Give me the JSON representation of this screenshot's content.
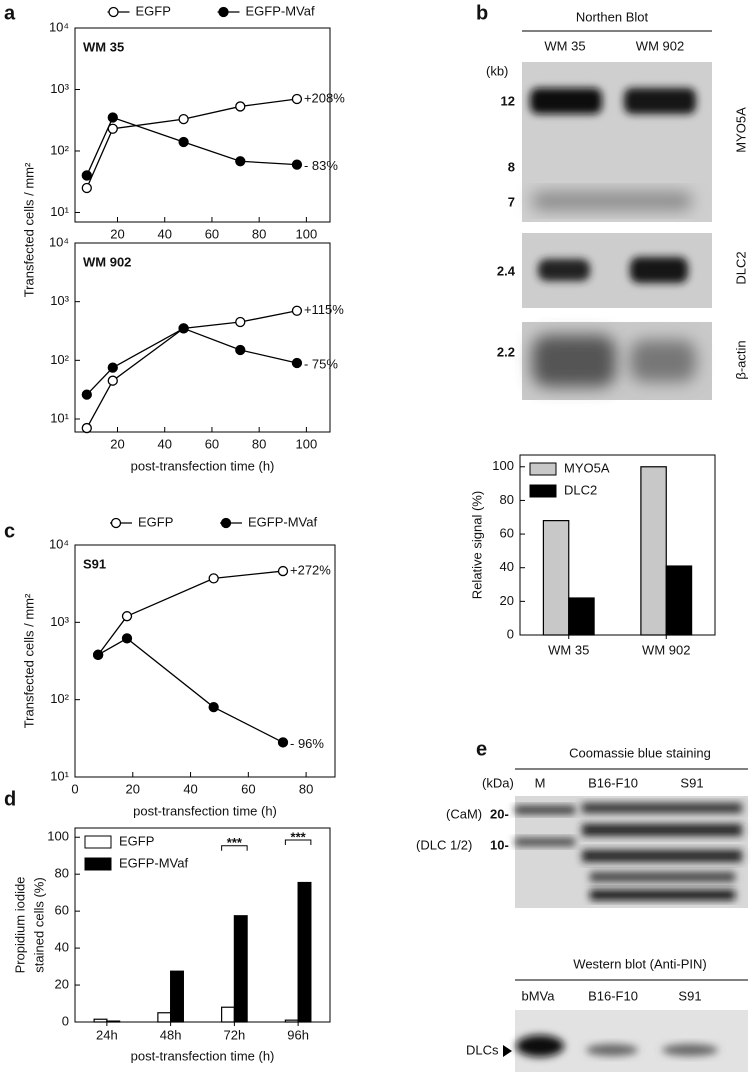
{
  "panel_labels": [
    "a",
    "b",
    "c",
    "d",
    "e"
  ],
  "chart_data": [
    {
      "type": "line",
      "log_scale": true,
      "label": "WM 35",
      "ylabel": "Transfected cells / mm²",
      "legend": "top",
      "x": [
        7,
        18,
        48,
        72,
        96
      ],
      "xlim": [
        2,
        110
      ],
      "xticks": [
        20,
        40,
        60,
        80,
        100
      ],
      "ylim": [
        7,
        10000
      ],
      "yticks": [
        {
          "value": 10,
          "label": "10¹"
        },
        {
          "value": 100,
          "label": "10²"
        },
        {
          "value": 1000,
          "label": "10³"
        },
        {
          "value": 10000,
          "label": "10⁴"
        }
      ],
      "series": [
        {
          "name": "EGFP",
          "color": "#000000",
          "marker_fill": "#ffffff",
          "values": [
            25,
            230,
            330,
            530,
            700
          ],
          "end_label": "+208%"
        },
        {
          "name": "EGFP-MVaf",
          "color": "#000000",
          "marker_fill": "#000000",
          "values": [
            40,
            350,
            140,
            68,
            60
          ],
          "end_label": "- 83%"
        }
      ]
    },
    {
      "type": "line",
      "log_scale": true,
      "label": "WM 902",
      "xlabel": "post-transfection time (h)",
      "x": [
        7,
        18,
        48,
        72,
        96
      ],
      "xlim": [
        2,
        110
      ],
      "xticks": [
        20,
        40,
        60,
        80,
        100
      ],
      "ylim": [
        6,
        10000
      ],
      "yticks": [
        {
          "value": 10,
          "label": "10¹"
        },
        {
          "value": 100,
          "label": "10²"
        },
        {
          "value": 1000,
          "label": "10³"
        },
        {
          "value": 10000,
          "label": "10⁴"
        }
      ],
      "series": [
        {
          "color": "#000000",
          "marker_fill": "#ffffff",
          "values": [
            7,
            45,
            350,
            450,
            700
          ],
          "end_label": "+115%"
        },
        {
          "color": "#000000",
          "marker_fill": "#000000",
          "values": [
            26,
            75,
            350,
            150,
            90
          ],
          "end_label": "- 75%"
        }
      ]
    },
    {
      "type": "line",
      "log_scale": true,
      "label": "S91",
      "ylabel": "Transfected cells / mm²",
      "xlabel": "post-transfection time (h)",
      "legend": "top",
      "x": [
        8,
        18,
        48,
        72
      ],
      "xlim": [
        0,
        90
      ],
      "xticks": [
        0,
        20,
        40,
        60,
        80
      ],
      "ylim": [
        10,
        10000
      ],
      "yticks": [
        {
          "value": 10,
          "label": "10¹"
        },
        {
          "value": 100,
          "label": "10²"
        },
        {
          "value": 1000,
          "label": "10³"
        },
        {
          "value": 10000,
          "label": "10⁴"
        }
      ],
      "series": [
        {
          "name": "EGFP",
          "color": "#000000",
          "marker_fill": "#ffffff",
          "values": [
            380,
            1200,
            3700,
            4600
          ],
          "end_label": "+272%"
        },
        {
          "name": "EGFP-MVaf",
          "color": "#000000",
          "marker_fill": "#000000",
          "values": [
            380,
            620,
            80,
            28
          ],
          "end_label": "- 96%"
        }
      ]
    },
    {
      "type": "bar",
      "ylabel": [
        "Propidium iodide",
        "stained cells (%)"
      ],
      "xlabel": "post-transfection time (h)",
      "legend": "top-left",
      "categories": [
        "24h",
        "48h",
        "72h",
        "96h"
      ],
      "ylim": [
        0,
        105
      ],
      "yticks": [
        0,
        20,
        40,
        60,
        80,
        100
      ],
      "significance": [
        null,
        null,
        "***",
        "***"
      ],
      "series": [
        {
          "name": "EGFP",
          "color": "#ffffff",
          "values": [
            1.5,
            5,
            8,
            1
          ]
        },
        {
          "name": "EGFP-MVaf",
          "color": "#000000",
          "values": [
            0.5,
            27.5,
            57.5,
            75.5
          ]
        }
      ]
    },
    {
      "type": "bar",
      "ylabel": "Relative signal (%)",
      "legend": "top-left",
      "categories": [
        "WM 35",
        "WM 902"
      ],
      "ylim": [
        0,
        107
      ],
      "yticks": [
        0,
        20,
        40,
        60,
        80,
        100
      ],
      "series": [
        {
          "name": "MYO5A",
          "color": "#c8c8c8",
          "values": [
            68,
            100
          ]
        },
        {
          "name": "DLC2",
          "color": "#000000",
          "values": [
            22,
            41
          ]
        }
      ]
    }
  ],
  "northern_blot": {
    "title": "Northen Blot",
    "lanes": [
      "WM 35",
      "WM 902"
    ],
    "unit": "(kb)",
    "markers": [
      "12",
      "8",
      "7",
      "2.4",
      "2.2"
    ],
    "probes": [
      "MYO5A",
      "DLC2",
      "β-actin"
    ]
  },
  "protein_blots": {
    "coomassie_title": "Coomassie blue staining",
    "unit": "(kDa)",
    "coomassie_lanes": [
      "M",
      "B16-F10",
      "S91"
    ],
    "markers": [
      {
        "name": "(CaM)",
        "size": "20-"
      },
      {
        "name": "(DLC 1/2)",
        "size": "10-"
      }
    ],
    "western_title": "Western blot (Anti-PIN)",
    "western_lanes": [
      "bMVa",
      "B16-F10",
      "S91"
    ],
    "band_label": "DLCs"
  }
}
